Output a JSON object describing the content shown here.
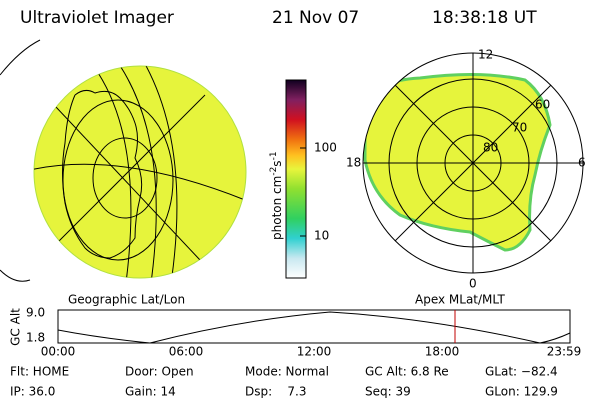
{
  "header": {
    "instrument": "Ultraviolet Imager",
    "date": "21 Nov 07",
    "time": "18:38:18 UT"
  },
  "left_image": {
    "label": "Geographic Lat/Lon"
  },
  "colorbar": {
    "unit_label": "photon cm",
    "unit_exp1": "-2",
    "unit_s": "s",
    "unit_exp2": "-1",
    "ticks": [
      "100",
      "10"
    ]
  },
  "right_image": {
    "label": "Apex MLat/MLT",
    "mlt_labels": [
      "12",
      "18",
      "6",
      "0"
    ],
    "lat_labels": [
      "80",
      "70",
      "60"
    ]
  },
  "altitude_panel": {
    "axis_label": "GC Alt",
    "yticks": [
      "9.0",
      "1.8"
    ],
    "xticks": [
      "00:00",
      "06:00",
      "12:00",
      "18:00",
      "23:59"
    ]
  },
  "info": {
    "rows": [
      [
        "Flt: HOME",
        "Door: Open",
        "Mode: Normal",
        "GC Alt: 6.8 Re",
        "GLat: −82.4"
      ],
      [
        "IP: 36.0",
        "Gain: 14",
        "Dsp:    7.3",
        "Seq: 39",
        "GLon: 129.9"
      ]
    ]
  }
}
